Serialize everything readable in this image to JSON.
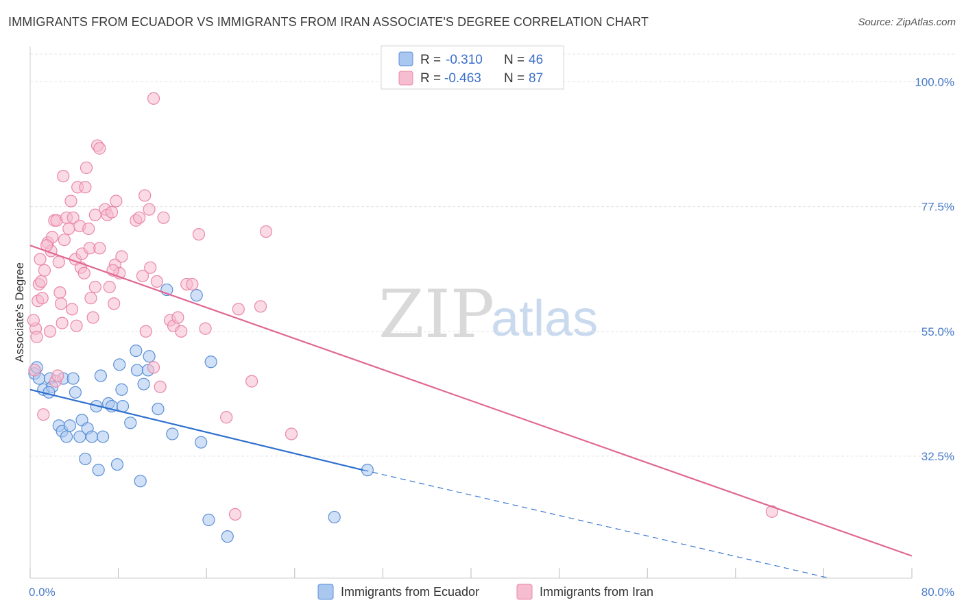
{
  "title": "IMMIGRANTS FROM ECUADOR VS IMMIGRANTS FROM IRAN ASSOCIATE'S DEGREE CORRELATION CHART",
  "source": "Source: ZipAtlas.com",
  "watermark": {
    "zip": "ZIP",
    "atlas": "atlas"
  },
  "colors": {
    "ecuador_fill": "#aac7f0",
    "ecuador_stroke": "#5b8fd6",
    "ecuador_line": "#2d6fcf",
    "iran_fill": "#f6bcd0",
    "iran_stroke": "#e987a8",
    "iran_line": "#e06893",
    "grid": "#e3e3e3",
    "axis": "#cccccc"
  },
  "legend_top": [
    {
      "r_label": "R =",
      "r_value": "-0.310",
      "n_label": "N =",
      "n_value": "46"
    },
    {
      "r_label": "R =",
      "r_value": "-0.463",
      "n_label": "N =",
      "n_value": "87"
    }
  ],
  "chart_data": {
    "type": "scatter",
    "title": "IMMIGRANTS FROM ECUADOR VS IMMIGRANTS FROM IRAN ASSOCIATE'S DEGREE CORRELATION CHART",
    "xlabel": "",
    "ylabel": "Associate's Degree",
    "xlim": [
      0,
      80
    ],
    "ylim": [
      10.5,
      105
    ],
    "x_tick_labels": [
      "0.0%",
      "80.0%"
    ],
    "y_ticks": [
      32.5,
      55.0,
      77.5,
      100.0
    ],
    "y_tick_labels": [
      "32.5%",
      "55.0%",
      "77.5%",
      "100.0%"
    ],
    "series": [
      {
        "name": "Immigrants from Ecuador",
        "points": [
          [
            0.4,
            47.4
          ],
          [
            0.6,
            48.5
          ],
          [
            0.8,
            46.5
          ],
          [
            1.2,
            44.5
          ],
          [
            1.8,
            46.5
          ],
          [
            2.0,
            45.0
          ],
          [
            1.7,
            44.0
          ],
          [
            3.0,
            46.5
          ],
          [
            3.9,
            46.5
          ],
          [
            4.1,
            44.0
          ],
          [
            2.6,
            38.0
          ],
          [
            2.9,
            37.0
          ],
          [
            3.6,
            38.0
          ],
          [
            3.3,
            36.0
          ],
          [
            4.5,
            36.0
          ],
          [
            4.7,
            39.0
          ],
          [
            5.2,
            37.5
          ],
          [
            5.6,
            36.0
          ],
          [
            6.0,
            41.5
          ],
          [
            6.4,
            47.0
          ],
          [
            6.6,
            36.0
          ],
          [
            7.1,
            42.0
          ],
          [
            7.4,
            41.5
          ],
          [
            8.1,
            49.0
          ],
          [
            8.3,
            44.5
          ],
          [
            8.4,
            41.5
          ],
          [
            9.1,
            38.5
          ],
          [
            9.6,
            51.5
          ],
          [
            9.7,
            48.0
          ],
          [
            10.3,
            45.5
          ],
          [
            10.8,
            50.5
          ],
          [
            10.7,
            48.0
          ],
          [
            11.6,
            41.0
          ],
          [
            12.4,
            62.5
          ],
          [
            12.9,
            36.5
          ],
          [
            15.1,
            61.5
          ],
          [
            15.5,
            35.0
          ],
          [
            16.4,
            49.5
          ],
          [
            5.0,
            32.0
          ],
          [
            6.2,
            30.0
          ],
          [
            7.9,
            31.0
          ],
          [
            10.0,
            28.0
          ],
          [
            16.2,
            21.0
          ],
          [
            17.9,
            18.0
          ],
          [
            30.6,
            30.0
          ],
          [
            27.6,
            21.5
          ]
        ]
      },
      {
        "name": "Immigrants from Iran",
        "points": [
          [
            0.4,
            48.0
          ],
          [
            0.5,
            55.5
          ],
          [
            0.6,
            54.0
          ],
          [
            0.7,
            60.5
          ],
          [
            0.8,
            63.5
          ],
          [
            1.0,
            64.0
          ],
          [
            1.1,
            61.0
          ],
          [
            1.3,
            66.0
          ],
          [
            1.6,
            71.0
          ],
          [
            1.9,
            69.5
          ],
          [
            2.0,
            72.0
          ],
          [
            2.2,
            75.0
          ],
          [
            2.4,
            75.0
          ],
          [
            2.6,
            67.5
          ],
          [
            2.7,
            62.0
          ],
          [
            2.8,
            60.0
          ],
          [
            2.9,
            56.5
          ],
          [
            3.1,
            71.5
          ],
          [
            3.3,
            75.5
          ],
          [
            3.5,
            73.5
          ],
          [
            3.7,
            78.5
          ],
          [
            3.9,
            75.5
          ],
          [
            4.1,
            68.0
          ],
          [
            4.3,
            81.0
          ],
          [
            4.5,
            74.0
          ],
          [
            4.6,
            66.5
          ],
          [
            4.7,
            69.0
          ],
          [
            4.9,
            65.5
          ],
          [
            5.0,
            81.0
          ],
          [
            5.1,
            84.5
          ],
          [
            5.3,
            73.5
          ],
          [
            5.4,
            70.0
          ],
          [
            5.5,
            61.0
          ],
          [
            5.7,
            57.5
          ],
          [
            5.9,
            76.0
          ],
          [
            6.1,
            88.5
          ],
          [
            6.3,
            88.0
          ],
          [
            6.8,
            77.0
          ],
          [
            7.0,
            76.0
          ],
          [
            7.2,
            63.0
          ],
          [
            7.4,
            76.5
          ],
          [
            7.6,
            60.0
          ],
          [
            7.7,
            67.0
          ],
          [
            7.8,
            78.5
          ],
          [
            8.1,
            65.5
          ],
          [
            8.3,
            68.5
          ],
          [
            9.6,
            75.0
          ],
          [
            9.9,
            75.5
          ],
          [
            10.2,
            65.0
          ],
          [
            10.5,
            55.0
          ],
          [
            10.8,
            77.0
          ],
          [
            10.9,
            66.5
          ],
          [
            11.2,
            48.5
          ],
          [
            11.5,
            64.0
          ],
          [
            11.8,
            45.0
          ],
          [
            12.1,
            75.5
          ],
          [
            12.7,
            57.0
          ],
          [
            13.0,
            56.0
          ],
          [
            13.4,
            57.5
          ],
          [
            13.7,
            55.0
          ],
          [
            14.2,
            63.5
          ],
          [
            14.7,
            63.5
          ],
          [
            15.3,
            72.5
          ],
          [
            15.9,
            55.5
          ],
          [
            17.8,
            39.5
          ],
          [
            18.9,
            59.0
          ],
          [
            20.1,
            46.0
          ],
          [
            20.9,
            59.5
          ],
          [
            21.4,
            73.0
          ],
          [
            23.7,
            36.5
          ],
          [
            1.8,
            55.0
          ],
          [
            2.3,
            46.0
          ],
          [
            3.8,
            59.0
          ],
          [
            5.9,
            63.0
          ],
          [
            0.3,
            57.0
          ],
          [
            0.9,
            68.0
          ],
          [
            1.5,
            70.5
          ],
          [
            3.0,
            83.0
          ],
          [
            6.3,
            70.0
          ],
          [
            7.5,
            66.0
          ],
          [
            2.5,
            47.0
          ],
          [
            10.4,
            79.5
          ],
          [
            4.2,
            56.0
          ],
          [
            11.2,
            97.0
          ],
          [
            18.6,
            22.0
          ],
          [
            67.3,
            22.5
          ],
          [
            1.2,
            40.0
          ]
        ]
      }
    ],
    "trend_lines": [
      {
        "series": "Immigrants from Ecuador",
        "solid": [
          [
            0,
            44.5
          ],
          [
            30.2,
            30.0
          ]
        ],
        "dashed": [
          [
            30.2,
            30.0
          ],
          [
            72.5,
            10.5
          ]
        ]
      },
      {
        "series": "Immigrants from Iran",
        "solid": [
          [
            0,
            70.5
          ],
          [
            80,
            14.5
          ]
        ]
      }
    ],
    "legend": [
      "Immigrants from Ecuador",
      "Immigrants from Iran"
    ],
    "grid": true
  }
}
